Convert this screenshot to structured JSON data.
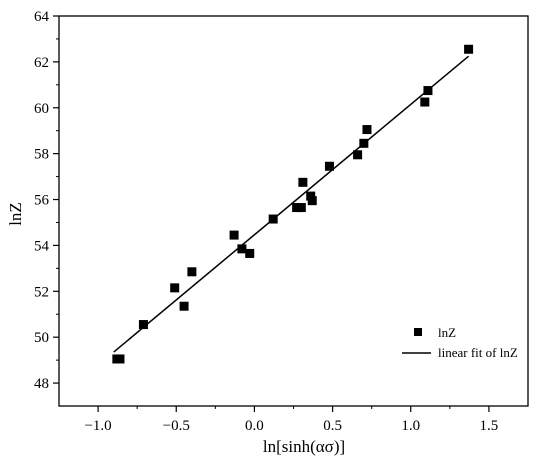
{
  "chart_data": {
    "type": "scatter",
    "title": "",
    "xlabel": "ln[sinh(ασ)]",
    "ylabel": "lnZ",
    "xlim": [
      -1.25,
      1.75
    ],
    "ylim": [
      47,
      64
    ],
    "xticks": [
      -1.0,
      -0.5,
      0.0,
      0.5,
      1.0,
      1.5
    ],
    "xtick_labels": [
      "−1.0",
      "−0.5",
      "0.0",
      "0.5",
      "1.0",
      "1.5"
    ],
    "yticks": [
      48,
      50,
      52,
      54,
      56,
      58,
      60,
      62,
      64
    ],
    "ytick_labels": [
      "48",
      "50",
      "52",
      "54",
      "56",
      "58",
      "60",
      "62",
      "64"
    ],
    "grid": false,
    "legend_position": "bottom-right",
    "series": [
      {
        "name": "lnZ",
        "kind": "scatter",
        "marker": "square",
        "color": "#000000",
        "points": [
          {
            "x": -0.88,
            "y": 49.05
          },
          {
            "x": -0.86,
            "y": 49.05
          },
          {
            "x": -0.71,
            "y": 50.55
          },
          {
            "x": -0.51,
            "y": 52.15
          },
          {
            "x": -0.45,
            "y": 51.35
          },
          {
            "x": -0.4,
            "y": 52.85
          },
          {
            "x": -0.13,
            "y": 54.45
          },
          {
            "x": -0.08,
            "y": 53.85
          },
          {
            "x": -0.03,
            "y": 53.65
          },
          {
            "x": 0.12,
            "y": 55.15
          },
          {
            "x": 0.27,
            "y": 55.65
          },
          {
            "x": 0.3,
            "y": 55.65
          },
          {
            "x": 0.31,
            "y": 56.75
          },
          {
            "x": 0.36,
            "y": 56.15
          },
          {
            "x": 0.37,
            "y": 55.95
          },
          {
            "x": 0.48,
            "y": 57.45
          },
          {
            "x": 0.66,
            "y": 57.95
          },
          {
            "x": 0.7,
            "y": 58.45
          },
          {
            "x": 0.72,
            "y": 59.05
          },
          {
            "x": 1.09,
            "y": 60.25
          },
          {
            "x": 1.11,
            "y": 60.75
          },
          {
            "x": 1.37,
            "y": 62.55
          }
        ]
      },
      {
        "name": "linear fit of lnZ",
        "kind": "line",
        "color": "#000000",
        "points": [
          {
            "x": -0.9,
            "y": 49.35
          },
          {
            "x": 1.37,
            "y": 62.25
          }
        ]
      }
    ]
  }
}
